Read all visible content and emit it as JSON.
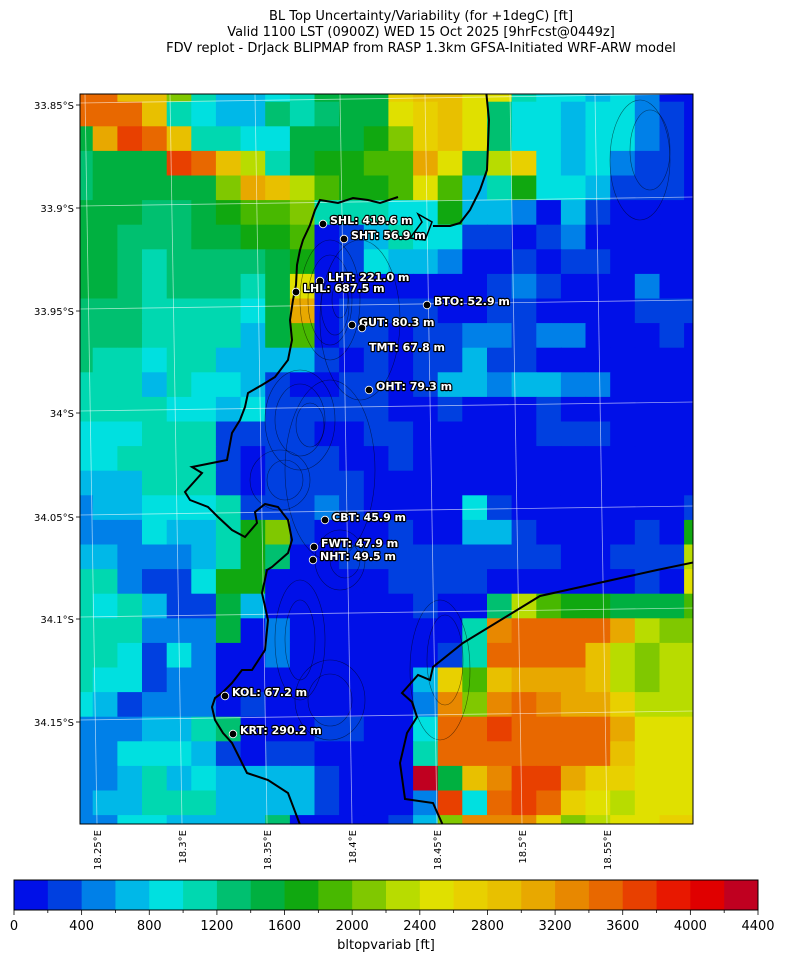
{
  "title": {
    "line1": "BL Top Uncertainty/Variability (for +1degC) [ft]",
    "line2": "Valid 1100 LST (0900Z) WED 15 Oct 2025 [9hrFcst@0449z]",
    "line3": "FDV replot - DrJack BLIPMAP from RASP 1.3km GFSA-Initiated WRF-ARW model"
  },
  "axes": {
    "lat_labels": [
      "33.85°S",
      "33.9°S",
      "33.95°S",
      "34°S",
      "34.05°S",
      "34.1°S",
      "34.15°S"
    ],
    "lon_labels": [
      "18.25°E",
      "18.3°E",
      "18.35°E",
      "18.4°E",
      "18.45°E",
      "18.5°E",
      "18.55°E"
    ]
  },
  "stations": [
    {
      "label": "SHL: 419.6 m"
    },
    {
      "label": "SHT: 56.9 m"
    },
    {
      "label": "LHT: 221.0 m"
    },
    {
      "label": "LHL: 687.5 m"
    },
    {
      "label": "BTO: 52.9 m"
    },
    {
      "label": "GUT: 80.3 m"
    },
    {
      "label": "TMT: 67.8 m"
    },
    {
      "label": "OHT: 79.3 m"
    },
    {
      "label": "CBT: 45.9 m"
    },
    {
      "label": "FWT: 47.9 m"
    },
    {
      "label": "NHT: 49.5 m"
    },
    {
      "label": "KOL: 67.2 m"
    },
    {
      "label": "KRT: 290.2 m"
    }
  ],
  "colorbar": {
    "label": "bltopvariab [ft]",
    "tick_labels": [
      "0",
      "400",
      "800",
      "1200",
      "1600",
      "2000",
      "2400",
      "2800",
      "3200",
      "3600",
      "4000",
      "4400"
    ],
    "min": 0,
    "max": 4400,
    "step": 200,
    "colors": [
      "#0010e8",
      "#0040e0",
      "#0080e8",
      "#00b8e8",
      "#00e0e0",
      "#00d8b0",
      "#00c070",
      "#00b040",
      "#10a810",
      "#48b800",
      "#80c800",
      "#b8dc00",
      "#e0e000",
      "#e8d000",
      "#e8c000",
      "#e8a800",
      "#e88800",
      "#e86800",
      "#e84000",
      "#e81800",
      "#e00000",
      "#c00020"
    ]
  },
  "field": {
    "encoding": "each char is a color-bin index 0-21 (0-9, a=10 ... l=21); rows north to south",
    "rows": [
      "hheea53345777deecc54434200",
      "hhhe543365677cdec644344210",
      "7fihe55447778adec644344210",
      "6777iheb578899fc6bd4342110",
      "677777afeb9889c93584431110",
      "777667899a5554483320310000",
      "77666778890135441101200000",
      "77656666780143320010110000",
      "776566657c0000000121000200",
      "666555547f0111100110000111",
      "66655553790110112212200010",
      "65545533331010113110000000",
      "55535443100110133233220000",
      "55554434111110010001000000",
      "44455511110011000001110000",
      "44555510111001000000000000",
      "33355510111100000000000000",
      "23344451112100004100000001",
      "22243358a10001003310000108",
      "3322235860011111111100111b",
      "5521148800000111100000010c",
      "545311730000001006b9887779",
      "55522270200000005ghhhhfbaa",
      "55414200200000015hhhhebabb",
      "544122000000003d9efffebabb",
      "431222010000002gaghgffdbbb",
      "222335600011004hhihhhhfccc",
      "224443101100005hhhhhhheccc",
      "22353433331000l7egiifddccc",
      "233555333310002i4hihdcbccc",
      "224433336000013agggdabccdd"
    ]
  }
}
